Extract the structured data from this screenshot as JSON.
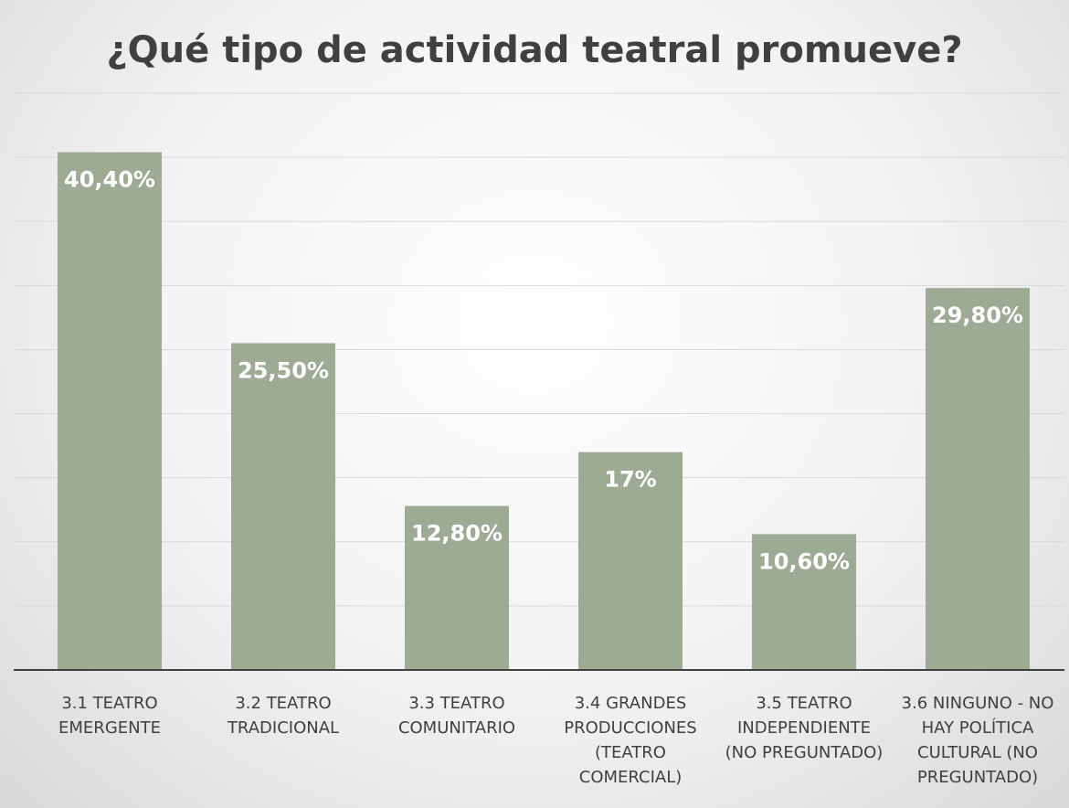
{
  "chart_data": {
    "type": "bar",
    "title": "¿Qué tipo de actividad teatral promueve?",
    "categories": [
      "3.1 TEATRO EMERGENTE",
      "3.2 TEATRO TRADICIONAL",
      "3.3 TEATRO COMUNITARIO",
      "3.4 GRANDES PRODUCCIONES (TEATRO COMERCIAL)",
      "3.5 TEATRO INDEPENDIENTE (NO PREGUNTADO)",
      "3.6 NINGUNO - NO HAY POLÍTICA CULTURAL (NO PREGUNTADO)"
    ],
    "values": [
      40.4,
      25.5,
      12.8,
      17,
      10.6,
      29.8
    ],
    "value_labels": [
      "40,40%",
      "25,50%",
      "12,80%",
      "17%",
      "10,60%",
      "29,80%"
    ],
    "color": "#9eab94",
    "ylim": [
      0,
      45
    ],
    "yticks": [
      5,
      10,
      15,
      20,
      25,
      30,
      35,
      40,
      45
    ],
    "grid": true
  }
}
